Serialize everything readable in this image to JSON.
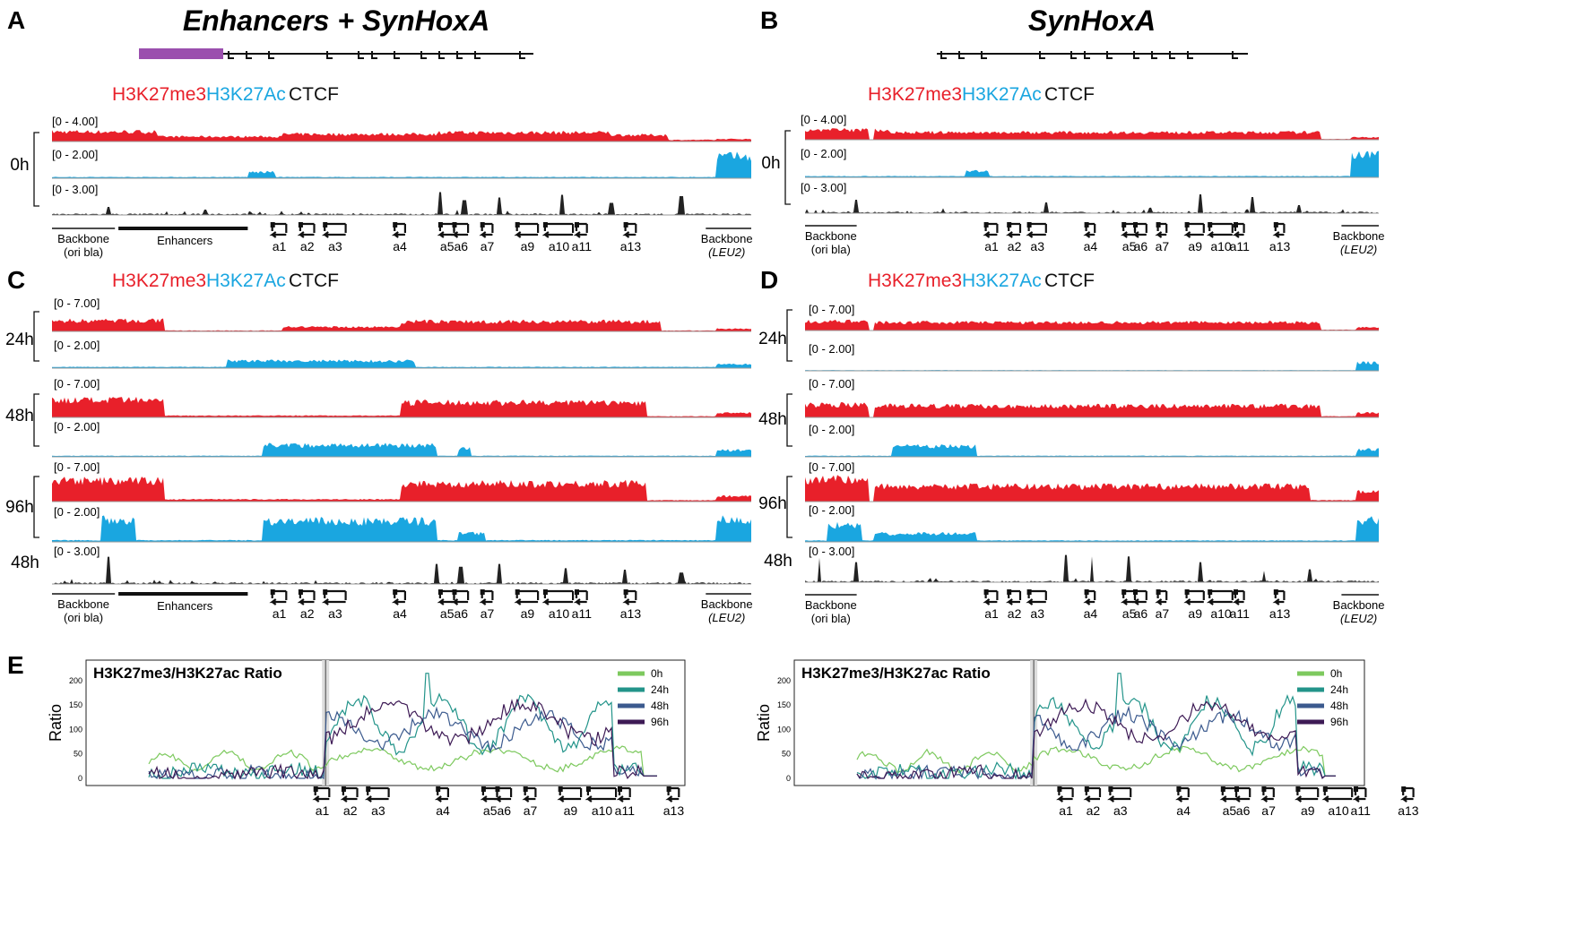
{
  "panels": {
    "A": {
      "letter": "A",
      "title": "Enhancers + SynHoxA"
    },
    "B": {
      "letter": "B",
      "title": "SynHoxA"
    },
    "C": {
      "letter": "C"
    },
    "D": {
      "letter": "D"
    },
    "E": {
      "letter": "E"
    }
  },
  "legend": {
    "h3k27me3": "H3K27me3",
    "h3k27ac": "H3K27Ac",
    "ctcf": "CTCF"
  },
  "colors": {
    "h3k27me3": "#e8202a",
    "h3k27ac": "#1aa6e0",
    "ctcf": "#222222",
    "enhancer_box": "#9b4fae"
  },
  "ranges": {
    "r4": "[0 - 4.00]",
    "r2": "[0 - 2.00]",
    "r3": "[0 - 3.00]",
    "r7": "[0 - 7.00]"
  },
  "times": {
    "t0": "0h",
    "t24": "24h",
    "t48": "48h",
    "t96": "96h"
  },
  "regions": {
    "backbone_left_1": "Backbone",
    "backbone_left_2": "(ori bla)",
    "enhancers": "Enhancers",
    "backbone_right_1": "Backbone",
    "backbone_right_2": "(LEU2)"
  },
  "genes": [
    "a1",
    "a2",
    "a3",
    "a4",
    "a5",
    "a6",
    "a7",
    "a9",
    "a10",
    "a11",
    "a13"
  ],
  "ratio": {
    "title": "H3K27me3/H3K27ac Ratio",
    "ylabel": "Ratio",
    "yticks": [
      "0",
      "50",
      "100",
      "150",
      "200"
    ],
    "series": [
      {
        "name": "0h",
        "color": "#7dc95e"
      },
      {
        "name": "24h",
        "color": "#23948a"
      },
      {
        "name": "48h",
        "color": "#3b5a8e"
      },
      {
        "name": "96h",
        "color": "#3d1a55"
      }
    ]
  }
}
